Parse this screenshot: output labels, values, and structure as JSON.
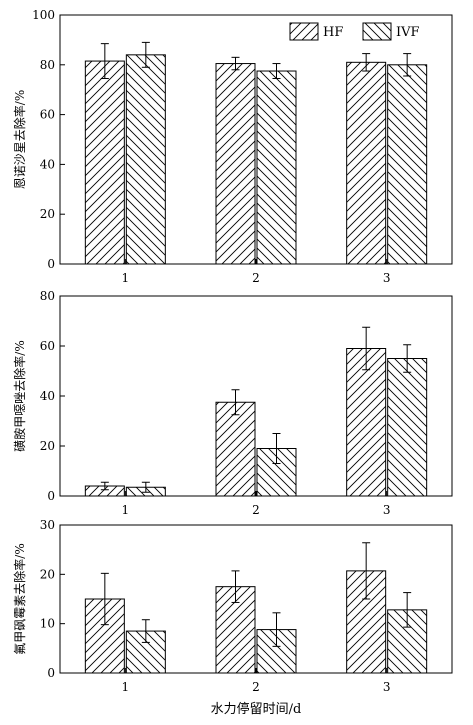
{
  "chart_data": [
    {
      "type": "bar",
      "categories": [
        "1",
        "2",
        "3"
      ],
      "ylabel": "恩诺沙星去除率/%",
      "xlabel": "",
      "ylim": [
        0,
        100
      ],
      "yticks": [
        "0",
        "20",
        "40",
        "60",
        "80",
        "100"
      ],
      "legend": "top-right",
      "series": [
        {
          "name": "HF",
          "values": [
            81.5,
            80.5,
            81
          ],
          "errors": [
            7,
            2.5,
            3.5
          ]
        },
        {
          "name": "IVF",
          "values": [
            84,
            77.5,
            80
          ],
          "errors": [
            5,
            3,
            4.5
          ]
        }
      ]
    },
    {
      "type": "bar",
      "categories": [
        "1",
        "2",
        "3"
      ],
      "ylabel": "磺胺甲噁唑去除率/%",
      "xlabel": "",
      "ylim": [
        0,
        80
      ],
      "yticks": [
        "0",
        "20",
        "40",
        "60",
        "80"
      ],
      "series": [
        {
          "name": "HF",
          "values": [
            4,
            37.5,
            59
          ],
          "errors": [
            1.5,
            5,
            8.5
          ]
        },
        {
          "name": "IVF",
          "values": [
            3.5,
            19,
            55
          ],
          "errors": [
            2,
            6,
            5.5
          ]
        }
      ]
    },
    {
      "type": "bar",
      "categories": [
        "1",
        "2",
        "3"
      ],
      "ylabel": "氟甲砜霉素去除率/%",
      "xlabel": "水力停留时间/d",
      "ylim": [
        0,
        30
      ],
      "yticks": [
        "0",
        "10",
        "20",
        "30"
      ],
      "series": [
        {
          "name": "HF",
          "values": [
            15,
            17.5,
            20.7
          ],
          "errors": [
            5.2,
            3.2,
            5.7
          ]
        },
        {
          "name": "IVF",
          "values": [
            8.5,
            8.8,
            12.8
          ],
          "errors": [
            2.3,
            3.4,
            3.5
          ]
        }
      ]
    }
  ]
}
